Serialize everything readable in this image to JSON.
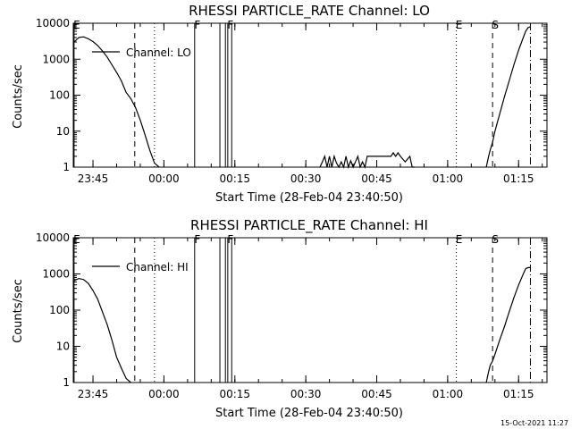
{
  "chart_data": [
    {
      "type": "line",
      "title": "RHESSI PARTICLE_RATE Channel: LO",
      "xlabel": "Start Time (28-Feb-04 23:40:50)",
      "ylabel": "Counts/sec",
      "xlim": [
        "23:40:50",
        "01:21:00"
      ],
      "ylim": [
        1,
        10000
      ],
      "yscale": "log",
      "xticks": [
        "23:45",
        "00:00",
        "00:15",
        "00:30",
        "00:45",
        "01:00",
        "01:15"
      ],
      "yticks": [
        "1",
        "10",
        "100",
        "1000",
        "10000"
      ],
      "legend": {
        "placement": "top-left",
        "label": "Channel: LO"
      },
      "markers": [
        {
          "label": "E",
          "time": "23:41:00",
          "style": "solid"
        },
        {
          "label": "",
          "time": "23:53:50",
          "style": "dashed"
        },
        {
          "label": "",
          "time": "23:58:00",
          "style": "dotted"
        },
        {
          "label": "F",
          "time": "00:06:30",
          "style": "solid"
        },
        {
          "label": "",
          "time": "00:11:50",
          "style": "solid"
        },
        {
          "label": "",
          "time": "00:13:00",
          "style": "solid"
        },
        {
          "label": "F",
          "time": "00:13:30",
          "style": "solid"
        },
        {
          "label": "",
          "time": "00:14:20",
          "style": "solid"
        },
        {
          "label": "E",
          "time": "01:01:50",
          "style": "dotted"
        },
        {
          "label": "S",
          "time": "01:09:30",
          "style": "dashed"
        },
        {
          "label": "",
          "time": "01:17:30",
          "style": "dashdot"
        }
      ],
      "series": [
        {
          "x": [
            "23:41:00",
            "23:42:00",
            "23:43:00",
            "23:44:00",
            "23:45:00",
            "23:46:00",
            "23:47:00",
            "23:48:00",
            "23:49:00",
            "23:50:00",
            "23:51:00",
            "23:52:00",
            "23:53:00",
            "23:54:00",
            "23:55:00",
            "23:56:00",
            "23:57:00",
            "23:58:00",
            "23:59:00"
          ],
          "y": [
            3000,
            4000,
            4200,
            3700,
            3100,
            2400,
            1700,
            1150,
            700,
            430,
            250,
            120,
            80,
            45,
            20,
            8,
            3,
            1.3,
            1
          ],
          "segment": "pre-night"
        },
        {
          "x": [
            "00:33:00",
            "00:33:30",
            "00:34:00",
            "00:34:30",
            "00:35:00",
            "00:35:30",
            "00:36:00",
            "00:36:30",
            "00:37:00",
            "00:37:30",
            "00:38:00",
            "00:38:30",
            "00:39:00",
            "00:39:30",
            "00:40:00",
            "00:40:30",
            "00:41:00",
            "00:41:30",
            "00:42:00",
            "00:42:30",
            "00:43:00",
            "00:44:00",
            "00:45:00",
            "00:46:00",
            "00:47:00",
            "00:48:00",
            "00:48:30",
            "00:49:00",
            "00:49:30",
            "00:50:00",
            "00:51:00",
            "00:52:00",
            "00:52:30",
            "00:53:00"
          ],
          "y": [
            1,
            1.4,
            2,
            1,
            2,
            1,
            2,
            1.3,
            1,
            1.4,
            1,
            2,
            1,
            1.5,
            1,
            1.4,
            2,
            1,
            1.4,
            1,
            2,
            2,
            2,
            2,
            2,
            2,
            2.5,
            2,
            2.5,
            2,
            1.4,
            2,
            1,
            1
          ],
          "segment": "background"
        },
        {
          "x": [
            "01:08:10",
            "01:08:40",
            "01:09:00",
            "01:09:30",
            "01:10:00",
            "01:11:00",
            "01:12:00",
            "01:13:00",
            "01:14:00",
            "01:15:00",
            "01:16:00",
            "01:16:30",
            "01:17:00",
            "01:17:30"
          ],
          "y": [
            1,
            2,
            3,
            5,
            10,
            30,
            90,
            250,
            700,
            1800,
            4000,
            6000,
            7500,
            8000
          ],
          "segment": "post-night"
        }
      ]
    },
    {
      "type": "line",
      "title": "RHESSI PARTICLE_RATE Channel: HI",
      "xlabel": "Start Time (28-Feb-04 23:40:50)",
      "ylabel": "Counts/sec",
      "xlim": [
        "23:40:50",
        "01:21:00"
      ],
      "ylim": [
        1,
        10000
      ],
      "yscale": "log",
      "xticks": [
        "23:45",
        "00:00",
        "00:15",
        "00:30",
        "00:45",
        "01:00",
        "01:15"
      ],
      "yticks": [
        "1",
        "10",
        "100",
        "1000",
        "10000"
      ],
      "legend": {
        "placement": "top-left",
        "label": "Channel: HI"
      },
      "markers": [
        {
          "label": "E",
          "time": "23:41:00",
          "style": "solid"
        },
        {
          "label": "",
          "time": "23:53:50",
          "style": "dashed"
        },
        {
          "label": "",
          "time": "23:58:00",
          "style": "dotted"
        },
        {
          "label": "F",
          "time": "00:06:30",
          "style": "solid"
        },
        {
          "label": "",
          "time": "00:11:50",
          "style": "solid"
        },
        {
          "label": "",
          "time": "00:13:00",
          "style": "solid"
        },
        {
          "label": "F",
          "time": "00:13:30",
          "style": "solid"
        },
        {
          "label": "",
          "time": "00:14:20",
          "style": "solid"
        },
        {
          "label": "E",
          "time": "01:01:50",
          "style": "dotted"
        },
        {
          "label": "S",
          "time": "01:09:30",
          "style": "dashed"
        },
        {
          "label": "",
          "time": "01:17:30",
          "style": "dashdot"
        }
      ],
      "series": [
        {
          "x": [
            "23:41:00",
            "23:42:00",
            "23:43:00",
            "23:44:00",
            "23:45:00",
            "23:46:00",
            "23:47:00",
            "23:48:00",
            "23:49:00",
            "23:50:00",
            "23:51:00",
            "23:52:00",
            "23:53:00"
          ],
          "y": [
            650,
            750,
            700,
            550,
            350,
            200,
            90,
            40,
            15,
            5,
            2.5,
            1.3,
            1
          ],
          "segment": "pre-night"
        },
        {
          "x": [
            "01:08:10",
            "01:08:40",
            "01:09:00",
            "01:09:30",
            "01:10:00",
            "01:11:00",
            "01:12:00",
            "01:13:00",
            "01:14:00",
            "01:15:00",
            "01:16:00",
            "01:16:30",
            "01:17:00",
            "01:17:30"
          ],
          "y": [
            1,
            2,
            3,
            4,
            6,
            15,
            35,
            90,
            220,
            500,
            1000,
            1400,
            1500,
            1500
          ],
          "segment": "post-night"
        }
      ]
    }
  ],
  "footer": {
    "timestamp": "15-Oct-2021 11:27"
  }
}
